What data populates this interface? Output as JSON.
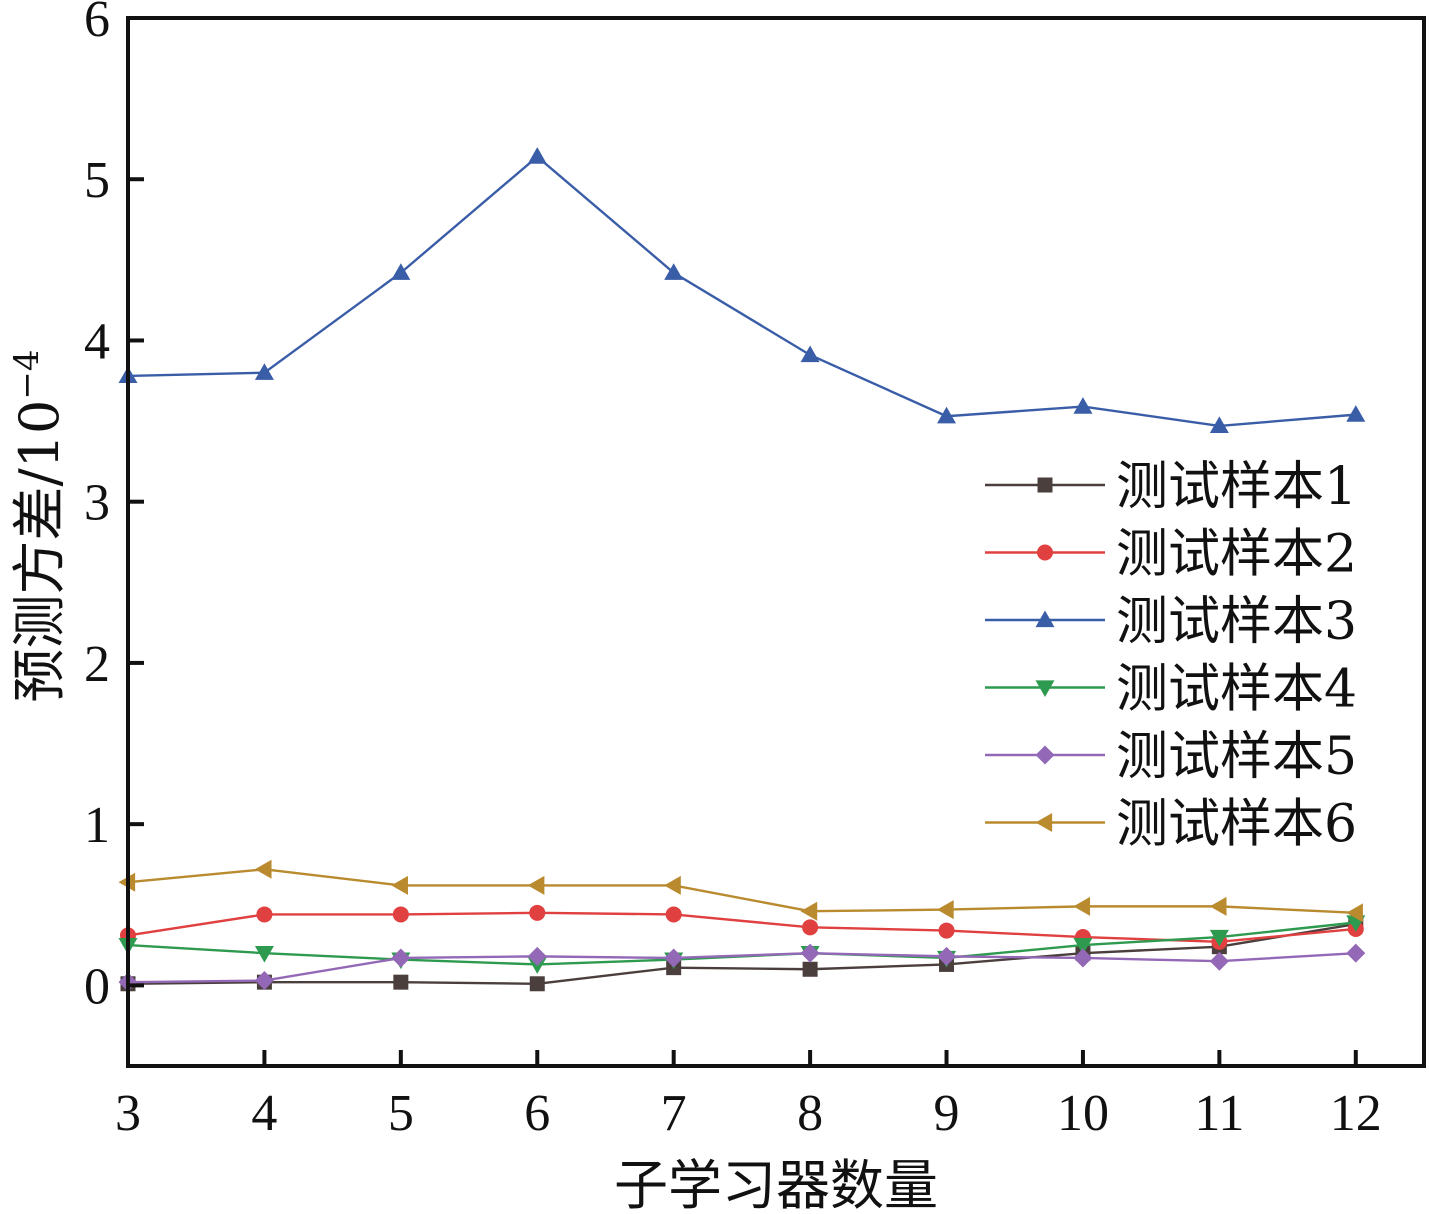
{
  "chart_data": {
    "type": "line",
    "xlabel": "子学习器数量",
    "ylabel": "预测方差/10",
    "ylabel_exponent": "−4",
    "x": [
      3,
      4,
      5,
      6,
      7,
      8,
      9,
      10,
      11,
      12
    ],
    "xlim": [
      3,
      12.5
    ],
    "ylim": [
      -0.5,
      6
    ],
    "xticks": [
      "3",
      "4",
      "5",
      "6",
      "7",
      "8",
      "9",
      "10",
      "11",
      "12"
    ],
    "yticks": [
      "0",
      "1",
      "2",
      "3",
      "4",
      "5",
      "6"
    ],
    "legend_position": "center-right",
    "grid": false,
    "series": [
      {
        "name": "测试样本1",
        "color": "#4a3f3c",
        "marker": "square",
        "values": [
          0.01,
          0.02,
          0.02,
          0.01,
          0.11,
          0.1,
          0.13,
          0.2,
          0.24,
          0.38
        ]
      },
      {
        "name": "测试样本2",
        "color": "#e0403f",
        "marker": "circle",
        "values": [
          0.31,
          0.44,
          0.44,
          0.45,
          0.44,
          0.36,
          0.34,
          0.3,
          0.27,
          0.35
        ]
      },
      {
        "name": "测试样本3",
        "color": "#3a5da8",
        "marker": "triangle-up",
        "values": [
          3.78,
          3.8,
          4.42,
          5.14,
          4.42,
          3.91,
          3.53,
          3.59,
          3.47,
          3.54
        ]
      },
      {
        "name": "测试样本4",
        "color": "#2e9a4f",
        "marker": "triangle-down",
        "values": [
          0.25,
          0.2,
          0.16,
          0.13,
          0.16,
          0.2,
          0.17,
          0.25,
          0.3,
          0.39
        ]
      },
      {
        "name": "测试样本5",
        "color": "#9368b7",
        "marker": "diamond",
        "values": [
          0.02,
          0.03,
          0.17,
          0.18,
          0.17,
          0.2,
          0.18,
          0.17,
          0.15,
          0.2
        ]
      },
      {
        "name": "测试样本6",
        "color": "#b98a2e",
        "marker": "triangle-left",
        "values": [
          0.64,
          0.72,
          0.62,
          0.62,
          0.62,
          0.46,
          0.47,
          0.49,
          0.49,
          0.45
        ]
      }
    ]
  }
}
